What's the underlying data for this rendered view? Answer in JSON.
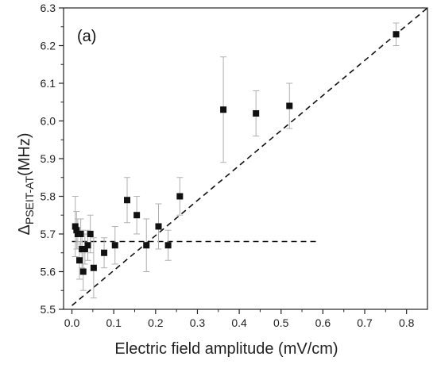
{
  "chart_data": {
    "type": "scatter",
    "panel_label": "(a)",
    "xlabel": "Electric field amplitude (mV/cm)",
    "ylabel_main": "Δ",
    "ylabel_sub": "PSEIT-AT",
    "ylabel_unit": "(MHz)",
    "xlim": [
      -0.02,
      0.85
    ],
    "ylim": [
      5.5,
      6.3
    ],
    "xticks": [
      0.0,
      0.1,
      0.2,
      0.3,
      0.4,
      0.5,
      0.6,
      0.7,
      0.8
    ],
    "xtick_labels": [
      "0.0",
      "0.1",
      "0.2",
      "0.3",
      "0.4",
      "0.5",
      "0.6",
      "0.7",
      "0.8"
    ],
    "yticks": [
      5.5,
      5.6,
      5.7,
      5.8,
      5.9,
      6.0,
      6.1,
      6.2,
      6.3
    ],
    "ytick_labels": [
      "5.5",
      "5.6",
      "5.7",
      "5.8",
      "5.9",
      "6.0",
      "6.1",
      "6.2",
      "6.3"
    ],
    "marker_color": "#111111",
    "errorbar_color": "#b0b0b0",
    "line_color": "#111111",
    "points": [
      {
        "x": 0.008,
        "y": 5.72,
        "err": 0.08
      },
      {
        "x": 0.011,
        "y": 5.71,
        "err": 0.05
      },
      {
        "x": 0.014,
        "y": 5.7,
        "err": 0.04
      },
      {
        "x": 0.018,
        "y": 5.63,
        "err": 0.05
      },
      {
        "x": 0.021,
        "y": 5.7,
        "err": 0.04
      },
      {
        "x": 0.024,
        "y": 5.66,
        "err": 0.05
      },
      {
        "x": 0.027,
        "y": 5.6,
        "err": 0.05
      },
      {
        "x": 0.031,
        "y": 5.66,
        "err": 0.04
      },
      {
        "x": 0.038,
        "y": 5.67,
        "err": 0.04
      },
      {
        "x": 0.044,
        "y": 5.7,
        "err": 0.05
      },
      {
        "x": 0.052,
        "y": 5.61,
        "err": 0.08
      },
      {
        "x": 0.077,
        "y": 5.65,
        "err": 0.04
      },
      {
        "x": 0.103,
        "y": 5.67,
        "err": 0.05
      },
      {
        "x": 0.132,
        "y": 5.79,
        "err": 0.06
      },
      {
        "x": 0.155,
        "y": 5.75,
        "err": 0.05
      },
      {
        "x": 0.178,
        "y": 5.67,
        "err": 0.07
      },
      {
        "x": 0.207,
        "y": 5.72,
        "err": 0.06
      },
      {
        "x": 0.23,
        "y": 5.67,
        "err": 0.04
      },
      {
        "x": 0.258,
        "y": 5.8,
        "err": 0.05
      },
      {
        "x": 0.362,
        "y": 6.03,
        "err": 0.14
      },
      {
        "x": 0.44,
        "y": 6.02,
        "err": 0.06
      },
      {
        "x": 0.52,
        "y": 6.04,
        "err": 0.06
      },
      {
        "x": 0.775,
        "y": 6.23,
        "err": 0.03
      }
    ],
    "reference_lines": [
      {
        "x": [
          0.0,
          0.59
        ],
        "y": [
          5.68,
          5.68
        ],
        "style": "dashed"
      },
      {
        "x": [
          0.0,
          0.85
        ],
        "y": [
          5.51,
          6.3
        ],
        "style": "dashed"
      }
    ]
  }
}
